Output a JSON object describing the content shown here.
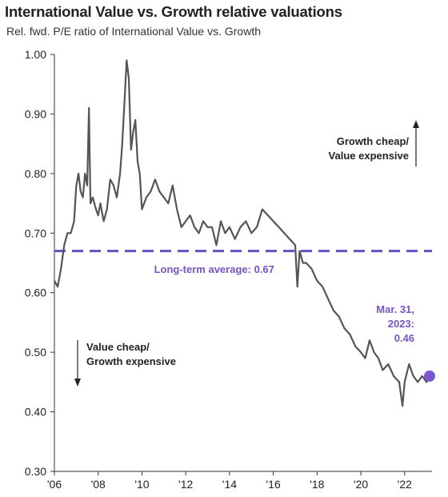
{
  "chart_data": {
    "type": "line",
    "title": "International Value vs. Growth relative valuations",
    "subtitle": "Rel. fwd. P/E ratio of International Value vs. Growth",
    "ylim": [
      0.3,
      1.0
    ],
    "xlim": [
      2006,
      2023.25
    ],
    "y_ticks": [
      "1.00",
      "0.90",
      "0.80",
      "0.70",
      "0.60",
      "0.50",
      "0.40",
      "0.30"
    ],
    "x_ticks": [
      "'06",
      "'08",
      "'10",
      "'12",
      "'14",
      "'16",
      "'18",
      "'20",
      "'22"
    ],
    "series": [
      {
        "color": "#555555",
        "x": [
          2006.0,
          2006.15,
          2006.3,
          2006.45,
          2006.6,
          2006.75,
          2006.9,
          2007.0,
          2007.1,
          2007.2,
          2007.3,
          2007.4,
          2007.5,
          2007.58,
          2007.65,
          2007.75,
          2007.9,
          2008.0,
          2008.1,
          2008.25,
          2008.4,
          2008.55,
          2008.7,
          2008.85,
          2009.0,
          2009.1,
          2009.2,
          2009.3,
          2009.4,
          2009.5,
          2009.6,
          2009.7,
          2009.8,
          2009.9,
          2010.0,
          2010.2,
          2010.4,
          2010.6,
          2010.8,
          2011.0,
          2011.2,
          2011.4,
          2011.6,
          2011.8,
          2012.0,
          2012.2,
          2012.4,
          2012.6,
          2012.8,
          2013.0,
          2013.2,
          2013.4,
          2013.6,
          2013.8,
          2014.0,
          2014.25,
          2014.5,
          2014.75,
          2015.0,
          2015.25,
          2015.5,
          2015.75,
          2016.0,
          2016.25,
          2016.5,
          2016.75,
          2017.0,
          2017.1,
          2017.2,
          2017.35,
          2017.5,
          2017.75,
          2018.0,
          2018.25,
          2018.5,
          2018.75,
          2019.0,
          2019.25,
          2019.5,
          2019.75,
          2020.0,
          2020.2,
          2020.4,
          2020.6,
          2020.8,
          2021.0,
          2021.25,
          2021.5,
          2021.75,
          2021.9,
          2022.0,
          2022.2,
          2022.4,
          2022.6,
          2022.8,
          2023.0,
          2023.1,
          2023.25
        ],
        "y": [
          0.62,
          0.61,
          0.64,
          0.68,
          0.7,
          0.7,
          0.72,
          0.78,
          0.8,
          0.77,
          0.76,
          0.8,
          0.78,
          0.91,
          0.75,
          0.76,
          0.74,
          0.73,
          0.75,
          0.72,
          0.74,
          0.79,
          0.78,
          0.76,
          0.8,
          0.85,
          0.92,
          0.99,
          0.96,
          0.84,
          0.87,
          0.89,
          0.82,
          0.8,
          0.74,
          0.76,
          0.77,
          0.79,
          0.77,
          0.76,
          0.75,
          0.78,
          0.74,
          0.71,
          0.72,
          0.73,
          0.71,
          0.7,
          0.72,
          0.71,
          0.71,
          0.68,
          0.72,
          0.7,
          0.71,
          0.69,
          0.71,
          0.72,
          0.7,
          0.71,
          0.74,
          0.73,
          0.72,
          0.71,
          0.7,
          0.69,
          0.68,
          0.61,
          0.67,
          0.65,
          0.65,
          0.64,
          0.62,
          0.61,
          0.59,
          0.57,
          0.56,
          0.54,
          0.53,
          0.51,
          0.5,
          0.49,
          0.52,
          0.5,
          0.49,
          0.47,
          0.48,
          0.46,
          0.45,
          0.41,
          0.45,
          0.48,
          0.46,
          0.45,
          0.46,
          0.45,
          0.46,
          0.46
        ]
      }
    ],
    "reference_line": {
      "value": 0.67,
      "label": "Long-term average: 0.67",
      "color": "#6a4fc4",
      "style": "dashed"
    },
    "end_marker": {
      "x": 2023.25,
      "y": 0.46,
      "label_lines": [
        "Mar. 31,",
        "2023:",
        "0.46"
      ],
      "color": "#7a57d1"
    },
    "annotations": {
      "top": [
        "Growth cheap/",
        "Value expensive"
      ],
      "bottom": [
        "Value cheap/",
        "Growth expensive"
      ]
    },
    "grid": false,
    "legend": "none"
  }
}
